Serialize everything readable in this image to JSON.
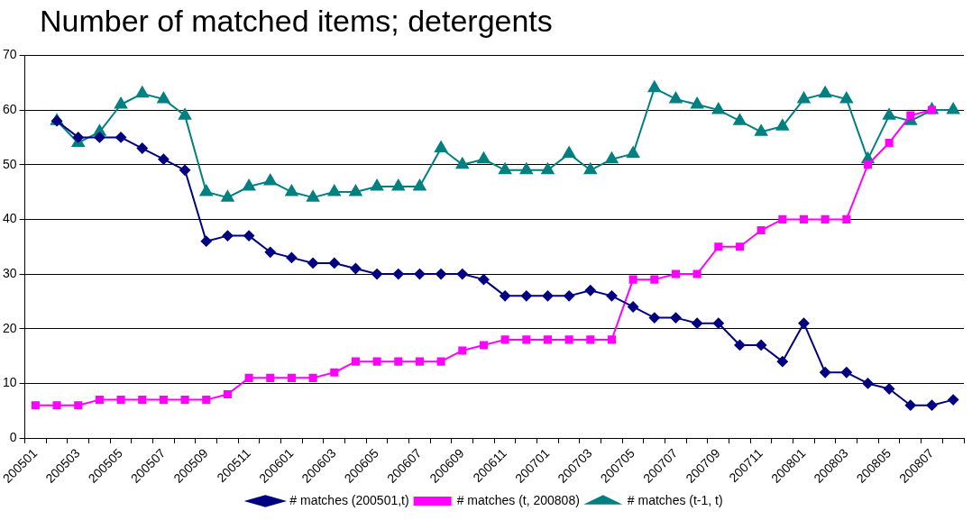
{
  "chart_data": {
    "type": "line",
    "title": "Number of matched items; detergents",
    "categories": [
      "200501",
      null,
      "200503",
      null,
      "200505",
      null,
      "200507",
      null,
      "200509",
      null,
      "200511",
      null,
      "200601",
      null,
      "200603",
      null,
      "200605",
      null,
      "200607",
      null,
      "200609",
      null,
      "200611",
      null,
      "200701",
      null,
      "200703",
      null,
      "200705",
      null,
      "200707",
      null,
      "200709",
      null,
      "200711",
      null,
      "200801",
      null,
      "200803",
      null,
      "200805",
      null,
      "200807",
      null
    ],
    "series": [
      {
        "name": "# matches (200501,t)",
        "color": "#000080",
        "marker": "diamond",
        "values": [
          null,
          58,
          55,
          55,
          55,
          53,
          51,
          49,
          36,
          37,
          37,
          34,
          33,
          32,
          32,
          31,
          30,
          30,
          30,
          30,
          30,
          29,
          26,
          26,
          26,
          26,
          27,
          26,
          24,
          22,
          22,
          21,
          21,
          17,
          17,
          14,
          21,
          12,
          12,
          10,
          9,
          6,
          6,
          7
        ]
      },
      {
        "name": "# matches (t, 200808)",
        "color": "#ff00ff",
        "marker": "square",
        "values": [
          6,
          6,
          6,
          7,
          7,
          7,
          7,
          7,
          7,
          8,
          11,
          11,
          11,
          11,
          12,
          14,
          14,
          14,
          14,
          14,
          16,
          17,
          18,
          18,
          18,
          18,
          18,
          18,
          29,
          29,
          30,
          30,
          35,
          35,
          38,
          40,
          40,
          40,
          40,
          50,
          54,
          59,
          60,
          null
        ]
      },
      {
        "name": "# matches (t-1, t)",
        "color": "#008080",
        "marker": "triangle",
        "values": [
          null,
          58,
          54,
          56,
          61,
          63,
          62,
          59,
          45,
          44,
          46,
          47,
          45,
          44,
          45,
          45,
          46,
          46,
          46,
          53,
          50,
          51,
          49,
          49,
          49,
          52,
          49,
          51,
          52,
          64,
          62,
          61,
          60,
          58,
          56,
          57,
          62,
          63,
          62,
          51,
          59,
          58,
          60,
          60
        ]
      }
    ],
    "ylim": [
      0,
      70
    ],
    "yticks": [
      0,
      10,
      20,
      30,
      40,
      50,
      60,
      70
    ],
    "grid": "y",
    "legend": "bottom",
    "line_style": "solid"
  }
}
